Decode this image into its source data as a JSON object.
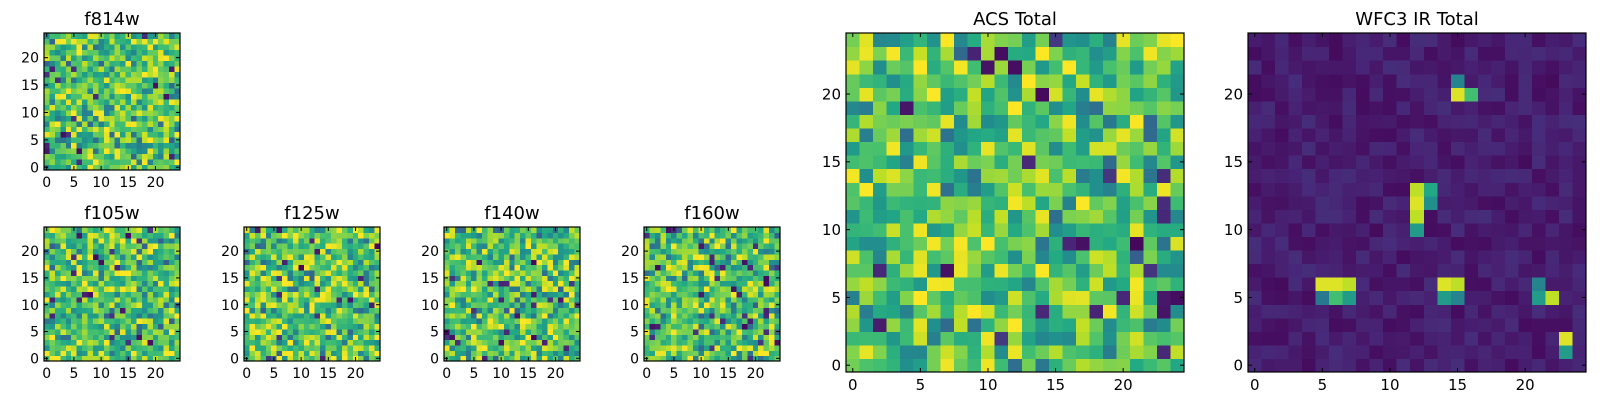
{
  "chart_data": [
    {
      "type": "heatmap",
      "title": "f814w",
      "grid": 25,
      "colormap": "viridis",
      "xlim": [
        -0.5,
        24.5
      ],
      "ylim": [
        -0.5,
        24.5
      ],
      "xticks": [
        0,
        5,
        10,
        15,
        20
      ],
      "yticks": [
        0,
        5,
        10,
        15,
        20
      ],
      "value_range": [
        0,
        1
      ],
      "mean_value": 0.72,
      "note_values": "per-pixel noise field"
    },
    {
      "type": "heatmap",
      "title": "f105w",
      "grid": 25,
      "colormap": "viridis",
      "xlim": [
        -0.5,
        24.5
      ],
      "ylim": [
        -0.5,
        24.5
      ],
      "xticks": [
        0,
        5,
        10,
        15,
        20
      ],
      "yticks": [
        0,
        5,
        10,
        15,
        20
      ],
      "value_range": [
        0,
        1
      ],
      "mean_value": 0.72
    },
    {
      "type": "heatmap",
      "title": "f125w",
      "grid": 25,
      "colormap": "viridis",
      "xlim": [
        -0.5,
        24.5
      ],
      "ylim": [
        -0.5,
        24.5
      ],
      "xticks": [
        0,
        5,
        10,
        15,
        20
      ],
      "yticks": [
        0,
        5,
        10,
        15,
        20
      ],
      "value_range": [
        0,
        1
      ],
      "mean_value": 0.72
    },
    {
      "type": "heatmap",
      "title": "f140w",
      "grid": 25,
      "colormap": "viridis",
      "xlim": [
        -0.5,
        24.5
      ],
      "ylim": [
        -0.5,
        24.5
      ],
      "xticks": [
        0,
        5,
        10,
        15,
        20
      ],
      "yticks": [
        0,
        5,
        10,
        15,
        20
      ],
      "value_range": [
        0,
        1
      ],
      "mean_value": 0.72
    },
    {
      "type": "heatmap",
      "title": "f160w",
      "grid": 25,
      "colormap": "viridis",
      "xlim": [
        -0.5,
        24.5
      ],
      "ylim": [
        -0.5,
        24.5
      ],
      "xticks": [
        0,
        5,
        10,
        15,
        20
      ],
      "yticks": [
        0,
        5,
        10,
        15,
        20
      ],
      "value_range": [
        0,
        1
      ],
      "mean_value": 0.72
    },
    {
      "type": "heatmap",
      "title": "ACS Total",
      "grid": 25,
      "colormap": "viridis",
      "xlim": [
        -0.5,
        24.5
      ],
      "ylim": [
        -0.5,
        24.5
      ],
      "xticks": [
        0,
        5,
        10,
        15,
        20
      ],
      "yticks": [
        0,
        5,
        10,
        15,
        20
      ],
      "value_range": [
        0,
        1
      ],
      "mean_value": 0.72
    },
    {
      "type": "heatmap",
      "title": "WFC3 IR Total",
      "grid": 25,
      "colormap": "viridis",
      "xlim": [
        -0.5,
        24.5
      ],
      "ylim": [
        -0.5,
        24.5
      ],
      "xticks": [
        0,
        5,
        10,
        15,
        20
      ],
      "yticks": [
        0,
        5,
        10,
        15,
        20
      ],
      "value_range": [
        0,
        1
      ],
      "background_value": 0.08,
      "bright_pixels": [
        {
          "x": 15,
          "y": 20,
          "value": 0.95
        },
        {
          "x": 16,
          "y": 20,
          "value": 0.7
        },
        {
          "x": 15,
          "y": 21,
          "value": 0.45
        },
        {
          "x": 12,
          "y": 13,
          "value": 0.9
        },
        {
          "x": 12,
          "y": 12,
          "value": 0.95
        },
        {
          "x": 12,
          "y": 11,
          "value": 0.9
        },
        {
          "x": 13,
          "y": 13,
          "value": 0.6
        },
        {
          "x": 13,
          "y": 12,
          "value": 0.5
        },
        {
          "x": 12,
          "y": 10,
          "value": 0.55
        },
        {
          "x": 5,
          "y": 6,
          "value": 0.95
        },
        {
          "x": 6,
          "y": 6,
          "value": 0.95
        },
        {
          "x": 7,
          "y": 6,
          "value": 0.9
        },
        {
          "x": 6,
          "y": 5,
          "value": 0.7
        },
        {
          "x": 7,
          "y": 5,
          "value": 0.55
        },
        {
          "x": 5,
          "y": 5,
          "value": 0.4
        },
        {
          "x": 14,
          "y": 6,
          "value": 0.95
        },
        {
          "x": 15,
          "y": 6,
          "value": 0.9
        },
        {
          "x": 14,
          "y": 5,
          "value": 0.55
        },
        {
          "x": 15,
          "y": 5,
          "value": 0.45
        },
        {
          "x": 21,
          "y": 6,
          "value": 0.45
        },
        {
          "x": 21,
          "y": 5,
          "value": 0.55
        },
        {
          "x": 22,
          "y": 5,
          "value": 0.9
        },
        {
          "x": 23,
          "y": 2,
          "value": 0.95
        },
        {
          "x": 23,
          "y": 1,
          "value": 0.55
        }
      ]
    }
  ]
}
